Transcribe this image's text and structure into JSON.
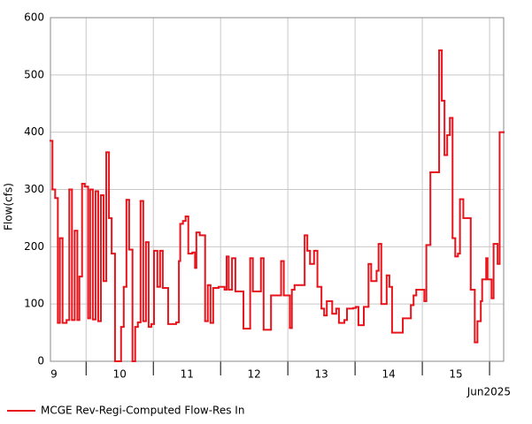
{
  "chart_data": {
    "type": "step",
    "title": null,
    "ylabel": "Flow(cfs)",
    "x_unit_label": "Jun2025",
    "xlim": [
      9.47,
      16.21
    ],
    "xticks": [
      {
        "value": 9.5,
        "label": "9"
      },
      {
        "value": 10.5,
        "label": "10"
      },
      {
        "value": 11.5,
        "label": "11"
      },
      {
        "value": 12.5,
        "label": "12"
      },
      {
        "value": 13.5,
        "label": "13"
      },
      {
        "value": 14.5,
        "label": "14"
      },
      {
        "value": 15.5,
        "label": "15"
      }
    ],
    "xgrid": [
      10,
      11,
      12,
      13,
      14,
      15,
      16
    ],
    "ylim": [
      0,
      600
    ],
    "yticks": [
      0,
      100,
      200,
      300,
      400,
      500,
      600
    ],
    "grid": true,
    "legend": "bottom-left",
    "series": [
      {
        "name": "MCGE Rev-Regi-Computed Flow-Res In",
        "color": "#e8141c",
        "x": [
          9.47,
          9.5,
          9.54,
          9.58,
          9.61,
          9.65,
          9.71,
          9.75,
          9.79,
          9.83,
          9.87,
          9.9,
          9.94,
          9.98,
          10.03,
          10.06,
          10.1,
          10.14,
          10.18,
          10.22,
          10.26,
          10.3,
          10.34,
          10.38,
          10.43,
          10.52,
          10.56,
          10.6,
          10.64,
          10.69,
          10.73,
          10.77,
          10.81,
          10.85,
          10.89,
          10.93,
          10.97,
          11.01,
          11.06,
          11.1,
          11.14,
          11.22,
          11.34,
          11.38,
          11.4,
          11.44,
          11.48,
          11.52,
          11.58,
          11.62,
          11.64,
          11.69,
          11.77,
          11.81,
          11.85,
          11.89,
          11.97,
          12.06,
          12.09,
          12.12,
          12.17,
          12.22,
          12.34,
          12.44,
          12.48,
          12.6,
          12.64,
          12.75,
          12.9,
          12.94,
          13.03,
          13.06,
          13.1,
          13.25,
          13.29,
          13.33,
          13.39,
          13.44,
          13.5,
          13.54,
          13.58,
          13.66,
          13.72,
          13.76,
          13.84,
          13.88,
          13.97,
          14.01,
          14.05,
          14.13,
          14.2,
          14.24,
          14.32,
          14.35,
          14.39,
          14.47,
          14.51,
          14.55,
          14.71,
          14.83,
          14.87,
          14.91,
          15.03,
          15.06,
          15.12,
          15.25,
          15.29,
          15.33,
          15.37,
          15.41,
          15.45,
          15.49,
          15.53,
          15.56,
          15.61,
          15.72,
          15.78,
          15.82,
          15.87,
          15.89,
          15.95,
          15.97,
          16.03,
          16.06,
          16.12,
          16.15
        ],
        "values": [
          385,
          300,
          285,
          67,
          215,
          67,
          72,
          300,
          72,
          228,
          72,
          148,
          310,
          305,
          75,
          300,
          73,
          297,
          70,
          290,
          140,
          365,
          250,
          188,
          0,
          60,
          130,
          282,
          195,
          0,
          60,
          68,
          280,
          70,
          208,
          60,
          65,
          193,
          130,
          193,
          128,
          65,
          68,
          175,
          240,
          245,
          253,
          188,
          190,
          163,
          225,
          220,
          70,
          133,
          67,
          128,
          130,
          125,
          183,
          125,
          180,
          122,
          57,
          180,
          122,
          180,
          55,
          115,
          175,
          115,
          58,
          125,
          133,
          220,
          193,
          170,
          193,
          130,
          92,
          80,
          105,
          83,
          92,
          67,
          72,
          92,
          93,
          95,
          63,
          95,
          170,
          140,
          158,
          205,
          100,
          150,
          130,
          50,
          75,
          98,
          115,
          125,
          105,
          203,
          330,
          543,
          455,
          360,
          395,
          425,
          215,
          183,
          188,
          283,
          250,
          125,
          33,
          70,
          105,
          143,
          180,
          143,
          110,
          205,
          170,
          400
        ]
      }
    ]
  }
}
